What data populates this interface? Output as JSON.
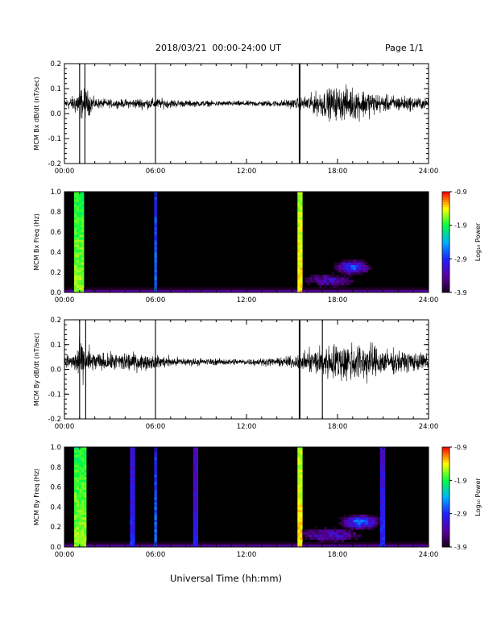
{
  "header": {
    "date_range": "2018/03/21  00:00-24:00 UT",
    "page": "Page 1/1"
  },
  "footer": {
    "xlabel": "Universal Time (hh:mm)"
  },
  "colors": {
    "trace": "#000000",
    "spectrogram_background": "#000000",
    "colorbar_stops": [
      "#1a001a",
      "#5a00a0",
      "#2020ff",
      "#00b0ff",
      "#00ff40",
      "#ffff00",
      "#ff0000"
    ]
  },
  "chart_data": [
    {
      "type": "line",
      "component": "Bx",
      "ylabel": "MCM Bx dB/dt (nT/sec)",
      "xlim": [
        0,
        24
      ],
      "ylim": [
        -0.2,
        0.2
      ],
      "x_ticks": [
        "00:00",
        "06:00",
        "12:00",
        "18:00",
        "24:00"
      ],
      "y_ticks": [
        "-0.2",
        "-0.1",
        "0.0",
        "0.1",
        "0.2"
      ],
      "baseline": 0.04,
      "spikes_hours": [
        1.0,
        1.35,
        6.0,
        15.5
      ],
      "amplitude_profile": {
        "hours": [
          0,
          0.5,
          1,
          1.5,
          2,
          3,
          4,
          5,
          6,
          8,
          10,
          12,
          14,
          15.5,
          16,
          17,
          18,
          19,
          20,
          21,
          22,
          24
        ],
        "amplitude": [
          0.02,
          0.025,
          0.06,
          0.05,
          0.02,
          0.015,
          0.015,
          0.02,
          0.02,
          0.012,
          0.01,
          0.01,
          0.012,
          0.02,
          0.03,
          0.05,
          0.06,
          0.06,
          0.05,
          0.03,
          0.03,
          0.02
        ]
      }
    },
    {
      "type": "heatmap",
      "component": "Bx",
      "ylabel": "MCM Bx Freq (Hz)",
      "xlim": [
        0,
        24
      ],
      "ylim": [
        0,
        1.0
      ],
      "x_ticks": [
        "00:00",
        "06:00",
        "12:00",
        "18:00",
        "24:00"
      ],
      "y_ticks": [
        "0.0",
        "0.2",
        "0.4",
        "0.6",
        "0.8",
        "1.0"
      ],
      "colorbar": {
        "label": "Log₁₀ Power",
        "range": [
          -3.9,
          -0.9
        ],
        "ticks": [
          "-0.9",
          "-1.9",
          "-2.9",
          "-3.9"
        ]
      },
      "vertical_features": [
        {
          "hour": 1.0,
          "width_h": 0.35,
          "log_power": -1.6
        },
        {
          "hour": 6.0,
          "width_h": 0.08,
          "log_power": -2.6
        },
        {
          "hour": 15.5,
          "width_h": 0.1,
          "log_power": -1.3
        }
      ],
      "blobs": [
        {
          "hour": 19.0,
          "freq": 0.25,
          "spread_h": 1.6,
          "spread_f": 0.1,
          "log_power": -2.8
        },
        {
          "hour": 17.5,
          "freq": 0.12,
          "spread_h": 3.0,
          "spread_f": 0.12,
          "log_power": -3.3
        }
      ]
    },
    {
      "type": "line",
      "component": "By",
      "ylabel": "MCM By dB/dt (nT/sec)",
      "xlim": [
        0,
        24
      ],
      "ylim": [
        -0.2,
        0.2
      ],
      "x_ticks": [
        "00:00",
        "06:00",
        "12:00",
        "18:00",
        "24:00"
      ],
      "y_ticks": [
        "-0.2",
        "-0.1",
        "0.0",
        "0.1",
        "0.2"
      ],
      "baseline": 0.03,
      "spikes_hours": [
        1.0,
        1.4,
        6.0,
        15.5,
        17.0
      ],
      "amplitude_profile": {
        "hours": [
          0,
          0.5,
          1,
          1.5,
          2,
          3,
          4,
          5,
          6,
          8,
          10,
          12,
          14,
          15.5,
          16,
          17,
          18,
          19,
          20,
          21,
          22,
          24
        ],
        "amplitude": [
          0.03,
          0.03,
          0.07,
          0.06,
          0.035,
          0.03,
          0.04,
          0.03,
          0.025,
          0.015,
          0.012,
          0.012,
          0.015,
          0.025,
          0.04,
          0.06,
          0.07,
          0.075,
          0.07,
          0.05,
          0.04,
          0.03
        ]
      }
    },
    {
      "type": "heatmap",
      "component": "By",
      "ylabel": "MCM By Freq (Hz)",
      "xlim": [
        0,
        24
      ],
      "ylim": [
        0,
        1.0
      ],
      "x_ticks": [
        "00:00",
        "06:00",
        "12:00",
        "18:00",
        "24:00"
      ],
      "y_ticks": [
        "0.0",
        "0.2",
        "0.4",
        "0.6",
        "0.8",
        "1.0"
      ],
      "colorbar": {
        "label": "Log₁₀ Power",
        "range": [
          -3.9,
          -0.9
        ],
        "ticks": [
          "-0.9",
          "-1.9",
          "-2.9",
          "-3.9"
        ]
      },
      "vertical_features": [
        {
          "hour": 1.1,
          "width_h": 0.4,
          "log_power": -1.6
        },
        {
          "hour": 6.0,
          "width_h": 0.08,
          "log_power": -2.6
        },
        {
          "hour": 15.5,
          "width_h": 0.1,
          "log_power": -1.3
        },
        {
          "hour": 4.4,
          "width_h": 0.06,
          "log_power": -2.9
        },
        {
          "hour": 8.6,
          "width_h": 0.06,
          "log_power": -3.0
        },
        {
          "hour": 21.0,
          "width_h": 0.06,
          "log_power": -2.9
        }
      ],
      "blobs": [
        {
          "hour": 19.5,
          "freq": 0.25,
          "spread_h": 1.8,
          "spread_f": 0.1,
          "log_power": -2.7
        },
        {
          "hour": 17.5,
          "freq": 0.12,
          "spread_h": 3.5,
          "spread_f": 0.12,
          "log_power": -3.2
        }
      ]
    }
  ]
}
